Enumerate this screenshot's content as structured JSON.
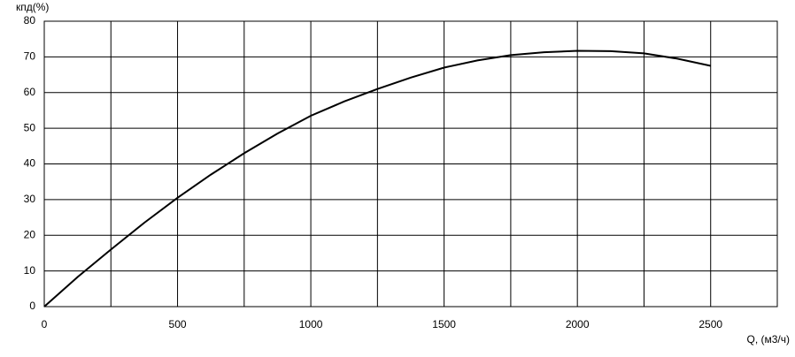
{
  "chart_data": {
    "type": "line",
    "y_label": "кпд(%)",
    "x_label": "Q, (м3/ч)",
    "x": [
      0,
      125,
      250,
      375,
      500,
      625,
      750,
      875,
      1000,
      1125,
      1250,
      1375,
      1500,
      1625,
      1750,
      1875,
      2000,
      2125,
      2250,
      2375,
      2500
    ],
    "series": [
      {
        "color": "#000000",
        "values": [
          0,
          8.3,
          16,
          23.5,
          30.5,
          37,
          43,
          48.5,
          53.5,
          57.5,
          61,
          64.2,
          67,
          69,
          70.5,
          71.3,
          71.7,
          71.6,
          71,
          69.5,
          67.5
        ]
      }
    ],
    "xlim": [
      0,
      2750
    ],
    "xticks": [
      0,
      500,
      1000,
      1500,
      2000,
      2500
    ],
    "x_minor_ticks": [
      250,
      750,
      1250,
      1750,
      2250,
      2750
    ],
    "ylim": [
      0,
      80
    ],
    "yticks": [
      0,
      10,
      20,
      30,
      40,
      50,
      60,
      70,
      80
    ],
    "grid": true
  }
}
